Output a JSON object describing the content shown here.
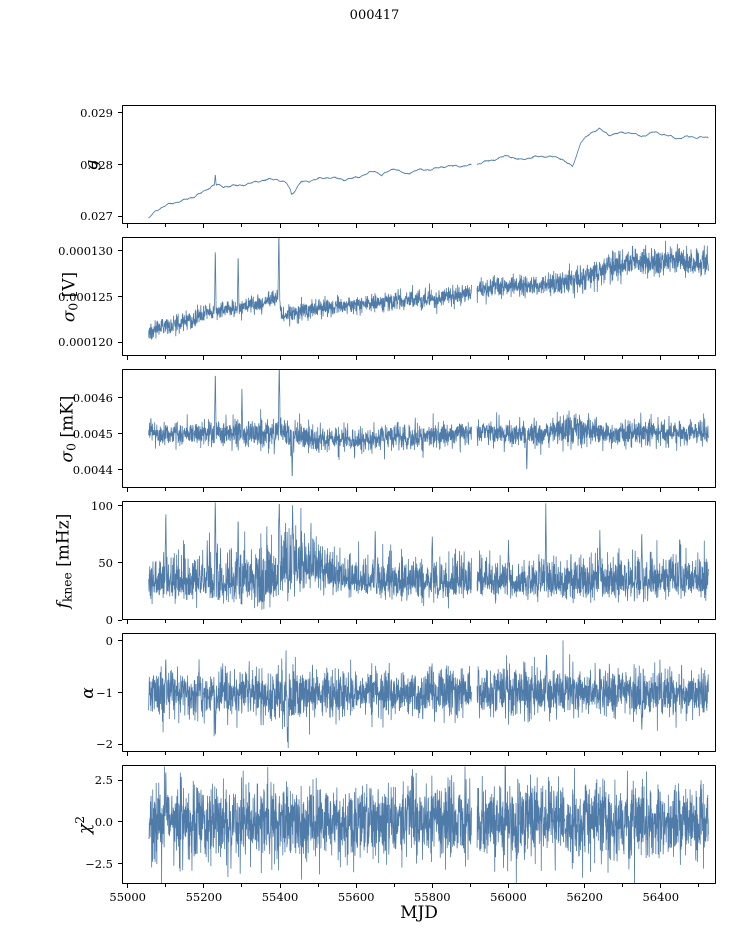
{
  "chart_data": {
    "type": "line",
    "title": "000417",
    "xlabel": "MJD",
    "xlim": [
      54985,
      56545
    ],
    "data_range": [
      55055,
      56525
    ],
    "gap": [
      55903,
      55917
    ],
    "xticks": [
      55000,
      55200,
      55400,
      55600,
      55800,
      56000,
      56200,
      56400
    ],
    "xtick_labels": [
      "55000",
      "55200",
      "55400",
      "55600",
      "55800",
      "56000",
      "56200",
      "56400"
    ],
    "xminor": [
      55100,
      55300,
      55500,
      55700,
      55900,
      56100,
      56300,
      56500
    ],
    "style": {
      "line_color": "#4f7ba9",
      "axis_color": "#000000",
      "background": "#ffffff"
    },
    "legend": "none",
    "grid": false,
    "panels": [
      {
        "id": "g",
        "ylabel_text": "g",
        "ylabel_parts": [
          {
            "t": "g",
            "i": 1
          }
        ],
        "ylim": [
          0.02685,
          0.02915
        ],
        "yticks": [
          {
            "v": 0.027,
            "label": "0.027"
          },
          {
            "v": 0.028,
            "label": "0.028"
          },
          {
            "v": 0.029,
            "label": "0.029"
          }
        ],
        "trend": [
          [
            55055,
            0.02696
          ],
          [
            55075,
            0.0271
          ],
          [
            55110,
            0.02722
          ],
          [
            55150,
            0.02733
          ],
          [
            55200,
            0.02748
          ],
          [
            55228,
            0.0276
          ],
          [
            55250,
            0.02755
          ],
          [
            55300,
            0.02762
          ],
          [
            55340,
            0.02768
          ],
          [
            55390,
            0.0277
          ],
          [
            55418,
            0.02763
          ],
          [
            55433,
            0.02745
          ],
          [
            55455,
            0.02768
          ],
          [
            55520,
            0.02773
          ],
          [
            55570,
            0.02771
          ],
          [
            55620,
            0.02781
          ],
          [
            55648,
            0.02787
          ],
          [
            55668,
            0.02777
          ],
          [
            55700,
            0.02792
          ],
          [
            55728,
            0.02783
          ],
          [
            55760,
            0.02791
          ],
          [
            55800,
            0.02789
          ],
          [
            55840,
            0.02796
          ],
          [
            55880,
            0.02799
          ],
          [
            55920,
            0.02802
          ],
          [
            55960,
            0.02807
          ],
          [
            56000,
            0.02817
          ],
          [
            56030,
            0.02811
          ],
          [
            56060,
            0.02815
          ],
          [
            56100,
            0.02814
          ],
          [
            56140,
            0.02811
          ],
          [
            56168,
            0.02797
          ],
          [
            56190,
            0.02845
          ],
          [
            56215,
            0.0286
          ],
          [
            56238,
            0.02868
          ],
          [
            56262,
            0.02855
          ],
          [
            56290,
            0.02861
          ],
          [
            56320,
            0.02864
          ],
          [
            56350,
            0.02855
          ],
          [
            56380,
            0.02861
          ],
          [
            56410,
            0.02856
          ],
          [
            56440,
            0.02851
          ],
          [
            56470,
            0.02856
          ],
          [
            56500,
            0.02853
          ],
          [
            56525,
            0.0285
          ]
        ],
        "noise": [
          [
            55055,
            5e-06
          ],
          [
            56525,
            5e-06
          ]
        ],
        "wiggle": [
          [
            2e-05,
            23
          ],
          [
            1.2e-05,
            7
          ],
          [
            8e-06,
            3
          ]
        ],
        "spikes": [
          [
            55230,
            0.02782
          ],
          [
            55430,
            0.02742
          ]
        ]
      },
      {
        "id": "sigma0-v",
        "ylabel_text": "σ0 [V]",
        "ylabel_parts": [
          {
            "t": "σ",
            "i": 1
          },
          {
            "t": "0",
            "sub": 1
          },
          {
            "t": " [V]"
          }
        ],
        "ylim": [
          0.0001185,
          0.0001315
        ],
        "yticks": [
          {
            "v": 0.00012,
            "label": "0.000120"
          },
          {
            "v": 0.000125,
            "label": "0.000125"
          },
          {
            "v": 0.00013,
            "label": "0.000130"
          }
        ],
        "trend": [
          [
            55055,
            0.0001212
          ],
          [
            55090,
            0.0001217
          ],
          [
            55130,
            0.0001221
          ],
          [
            55170,
            0.0001224
          ],
          [
            55200,
            0.0001231
          ],
          [
            55240,
            0.0001235
          ],
          [
            55280,
            0.0001237
          ],
          [
            55320,
            0.000124
          ],
          [
            55360,
            0.0001243
          ],
          [
            55396,
            0.0001251
          ],
          [
            55406,
            0.0001228
          ],
          [
            55440,
            0.0001233
          ],
          [
            55480,
            0.0001236
          ],
          [
            55520,
            0.0001238
          ],
          [
            55560,
            0.000124
          ],
          [
            55600,
            0.0001241
          ],
          [
            55640,
            0.0001243
          ],
          [
            55680,
            0.0001244
          ],
          [
            55720,
            0.0001245
          ],
          [
            55760,
            0.0001246
          ],
          [
            55800,
            0.0001248
          ],
          [
            55840,
            0.000125
          ],
          [
            55880,
            0.0001252
          ],
          [
            55902,
            0.0001254
          ],
          [
            55918,
            0.0001258
          ],
          [
            55960,
            0.0001261
          ],
          [
            56000,
            0.000126
          ],
          [
            56040,
            0.0001262
          ],
          [
            56080,
            0.0001262
          ],
          [
            56120,
            0.0001263
          ],
          [
            56160,
            0.0001266
          ],
          [
            56200,
            0.0001271
          ],
          [
            56240,
            0.0001277
          ],
          [
            56280,
            0.0001284
          ],
          [
            56320,
            0.0001287
          ],
          [
            56360,
            0.0001288
          ],
          [
            56400,
            0.0001287
          ],
          [
            56440,
            0.0001289
          ],
          [
            56480,
            0.0001288
          ],
          [
            56525,
            0.0001288
          ]
        ],
        "noise": [
          [
            55055,
            4.5e-07
          ],
          [
            56100,
            5.5e-07
          ],
          [
            56200,
            8e-07
          ],
          [
            56525,
            8e-07
          ]
        ],
        "sawtooth": {
          "amp": 3.5e-07,
          "period": 55,
          "until": 55400
        },
        "spikes": [
          [
            55230,
            0.0001306
          ],
          [
            55290,
            0.0001299
          ],
          [
            55397,
            0.0001325
          ],
          [
            55913,
            0.0001322
          ]
        ]
      },
      {
        "id": "sigma0-mk",
        "ylabel_text": "σ0 [mK]",
        "ylabel_parts": [
          {
            "t": "σ",
            "i": 1
          },
          {
            "t": "0",
            "sub": 1
          },
          {
            "t": " [mK]"
          }
        ],
        "ylim": [
          0.00435,
          0.00468
        ],
        "yticks": [
          {
            "v": 0.0044,
            "label": "0.0044"
          },
          {
            "v": 0.0045,
            "label": "0.0045"
          },
          {
            "v": 0.0046,
            "label": "0.0046"
          }
        ],
        "trend": [
          [
            55055,
            0.004505
          ],
          [
            55100,
            0.0045
          ],
          [
            55150,
            0.004502
          ],
          [
            55200,
            0.0045
          ],
          [
            55240,
            0.004505
          ],
          [
            55280,
            0.004498
          ],
          [
            55320,
            0.0045
          ],
          [
            55360,
            0.004502
          ],
          [
            55400,
            0.004508
          ],
          [
            55430,
            0.004495
          ],
          [
            55460,
            0.004488
          ],
          [
            55500,
            0.004482
          ],
          [
            55540,
            0.00448
          ],
          [
            55580,
            0.004482
          ],
          [
            55620,
            0.004485
          ],
          [
            55660,
            0.004488
          ],
          [
            55700,
            0.00449
          ],
          [
            55740,
            0.004492
          ],
          [
            55780,
            0.004495
          ],
          [
            55820,
            0.004498
          ],
          [
            55860,
            0.0045
          ],
          [
            55900,
            0.0045
          ],
          [
            55920,
            0.004502
          ],
          [
            55960,
            0.0045
          ],
          [
            56000,
            0.004498
          ],
          [
            56040,
            0.0045
          ],
          [
            56080,
            0.004502
          ],
          [
            56120,
            0.004505
          ],
          [
            56160,
            0.004512
          ],
          [
            56200,
            0.004515
          ],
          [
            56240,
            0.004505
          ],
          [
            56280,
            0.0045
          ],
          [
            56320,
            0.004502
          ],
          [
            56360,
            0.004505
          ],
          [
            56400,
            0.004505
          ],
          [
            56440,
            0.004503
          ],
          [
            56480,
            0.004505
          ],
          [
            56525,
            0.004505
          ]
        ],
        "noise": [
          [
            55055,
            1.6e-05
          ],
          [
            55430,
            2.2e-05
          ],
          [
            55520,
            1.8e-05
          ],
          [
            56100,
            1.8e-05
          ],
          [
            56160,
            2.6e-05
          ],
          [
            56260,
            1.8e-05
          ],
          [
            56525,
            1.8e-05
          ]
        ],
        "spikes": [
          [
            55230,
            0.00468
          ],
          [
            55300,
            0.00463
          ],
          [
            55398,
            0.00473
          ],
          [
            55432,
            0.00437
          ],
          [
            55913,
            0.00468
          ],
          [
            56048,
            0.00439
          ]
        ]
      },
      {
        "id": "fknee",
        "ylabel_text": "fknee [mHz]",
        "ylabel_parts": [
          {
            "t": "f",
            "i": 1
          },
          {
            "t": "knee",
            "sub": 1
          },
          {
            "t": " [mHz]"
          }
        ],
        "ylim": [
          0,
          104
        ],
        "yticks": [
          {
            "v": 0,
            "label": "0"
          },
          {
            "v": 50,
            "label": "50"
          },
          {
            "v": 100,
            "label": "100"
          }
        ],
        "trend": [
          [
            55055,
            33
          ],
          [
            55380,
            33
          ],
          [
            55425,
            46
          ],
          [
            55470,
            50
          ],
          [
            55510,
            44
          ],
          [
            55560,
            36
          ],
          [
            55610,
            34
          ],
          [
            55800,
            32
          ],
          [
            56000,
            34
          ],
          [
            56200,
            33
          ],
          [
            56400,
            34
          ],
          [
            56525,
            33
          ]
        ],
        "noise": [
          [
            55055,
            7
          ],
          [
            55425,
            11
          ],
          [
            55520,
            8
          ],
          [
            55560,
            7
          ],
          [
            56525,
            7
          ]
        ],
        "asym": 1.7,
        "spikes": [
          [
            55100,
            96
          ],
          [
            55230,
            110
          ],
          [
            55290,
            93
          ],
          [
            55398,
            110
          ],
          [
            55433,
            104
          ],
          [
            55650,
            78
          ],
          [
            55800,
            75
          ],
          [
            55912,
            104
          ],
          [
            56000,
            72
          ],
          [
            56098,
            103
          ],
          [
            56240,
            80
          ],
          [
            56350,
            78
          ],
          [
            56450,
            74
          ]
        ]
      },
      {
        "id": "alpha",
        "ylabel_text": "α",
        "ylabel_parts": [
          {
            "t": "α",
            "i": 1
          }
        ],
        "ylim": [
          -2.15,
          0.15
        ],
        "yticks": [
          {
            "v": -2,
            "label": "−2"
          },
          {
            "v": -1,
            "label": "−1"
          },
          {
            "v": 0,
            "label": "0"
          }
        ],
        "trend": [
          [
            55055,
            -1.0
          ],
          [
            55430,
            -1.04
          ],
          [
            55520,
            -1.0
          ],
          [
            56525,
            -1.0
          ]
        ],
        "noise": [
          [
            55055,
            0.22
          ],
          [
            55200,
            0.25
          ],
          [
            55320,
            0.22
          ],
          [
            55430,
            0.3
          ],
          [
            55560,
            0.22
          ],
          [
            56050,
            0.26
          ],
          [
            56160,
            0.22
          ],
          [
            56525,
            0.23
          ]
        ],
        "spikes": [
          [
            55100,
            -0.3
          ],
          [
            55230,
            -1.9
          ],
          [
            55420,
            -2.07
          ],
          [
            56100,
            -0.2
          ],
          [
            56350,
            -1.8
          ]
        ]
      },
      {
        "id": "chi2",
        "ylabel_text": "χ2",
        "ylabel_parts": [
          {
            "t": "χ",
            "i": 1
          },
          {
            "t": "2",
            "sup": 1
          }
        ],
        "ylim": [
          -3.7,
          3.4
        ],
        "yticks": [
          {
            "v": -2.5,
            "label": "−2.5"
          },
          {
            "v": 0,
            "label": "0.0"
          },
          {
            "v": 2.5,
            "label": "2.5"
          }
        ],
        "trend": [
          [
            55055,
            0
          ],
          [
            56525,
            0
          ]
        ],
        "noise": [
          [
            55055,
            1.15
          ],
          [
            56525,
            1.15
          ]
        ],
        "spikes": [
          [
            55100,
            3.3
          ]
        ]
      }
    ]
  }
}
